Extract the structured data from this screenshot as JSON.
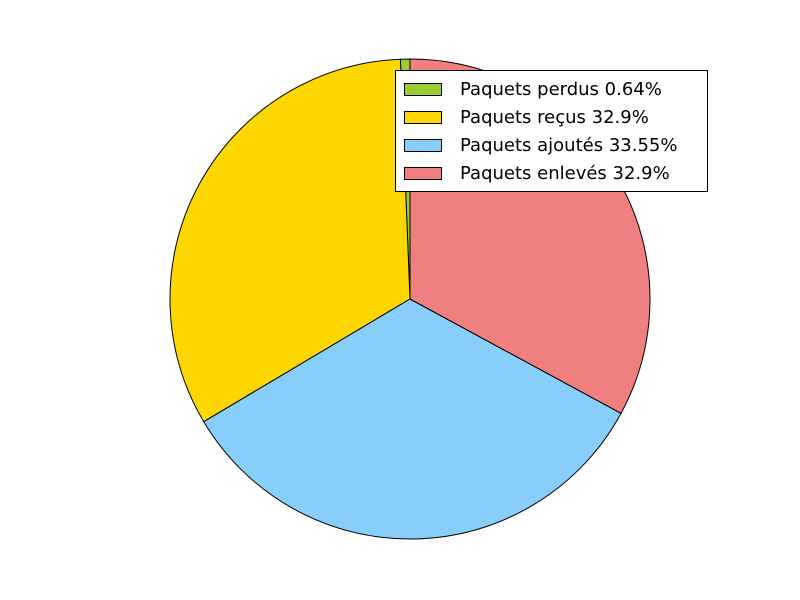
{
  "chart_data": {
    "type": "pie",
    "title": "",
    "slices": [
      {
        "label": "Paquets perdus 0.64%",
        "value": 0.64,
        "color": "#9acd32"
      },
      {
        "label": "Paquets reçus 32.9%",
        "value": 32.9,
        "color": "#ffd700"
      },
      {
        "label": "Paquets ajoutés 33.55%",
        "value": 33.55,
        "color": "#87cefa"
      },
      {
        "label": "Paquets enlevés 32.9%",
        "value": 32.9,
        "color": "#f08080"
      }
    ],
    "start_angle_deg": 90,
    "direction": "counterclockwise",
    "legend": {
      "placement": "top-right"
    }
  }
}
